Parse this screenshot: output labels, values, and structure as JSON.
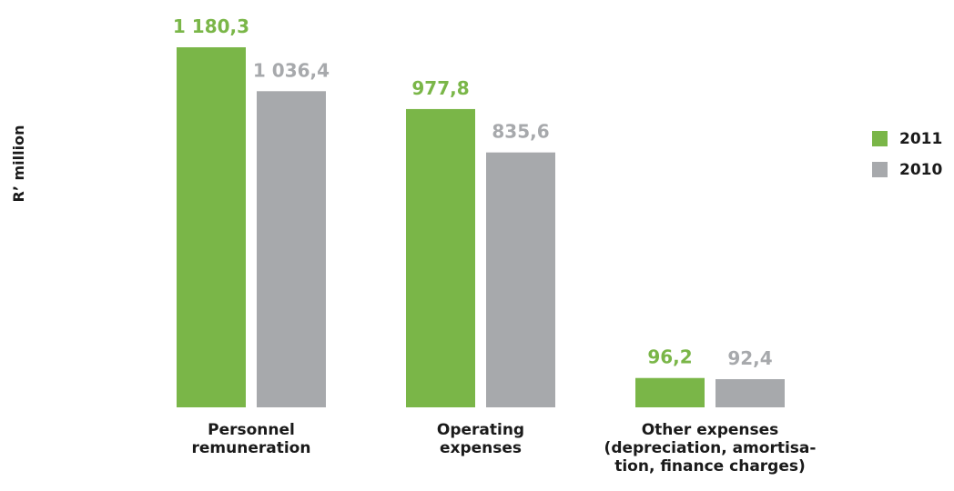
{
  "chart_data": {
    "type": "bar",
    "ylabel": "R’ million",
    "categories": [
      [
        "Personnel",
        "remuneration"
      ],
      [
        "Operating",
        "expenses"
      ],
      [
        "Other expenses",
        "(depreciation, amortisa-",
        "tion, finance charges)"
      ]
    ],
    "series": [
      {
        "name": "2011",
        "color": "#7ab648",
        "values": [
          1180.3,
          977.8,
          96.2
        ],
        "labels": [
          "1 180,3",
          "977,8",
          "96,2"
        ]
      },
      {
        "name": "2010",
        "color": "#a7a9ac",
        "values": [
          1036.4,
          835.6,
          92.4
        ],
        "labels": [
          "1 036,4",
          "835,6",
          "92,4"
        ]
      }
    ],
    "legend": "right",
    "grid": false
  }
}
